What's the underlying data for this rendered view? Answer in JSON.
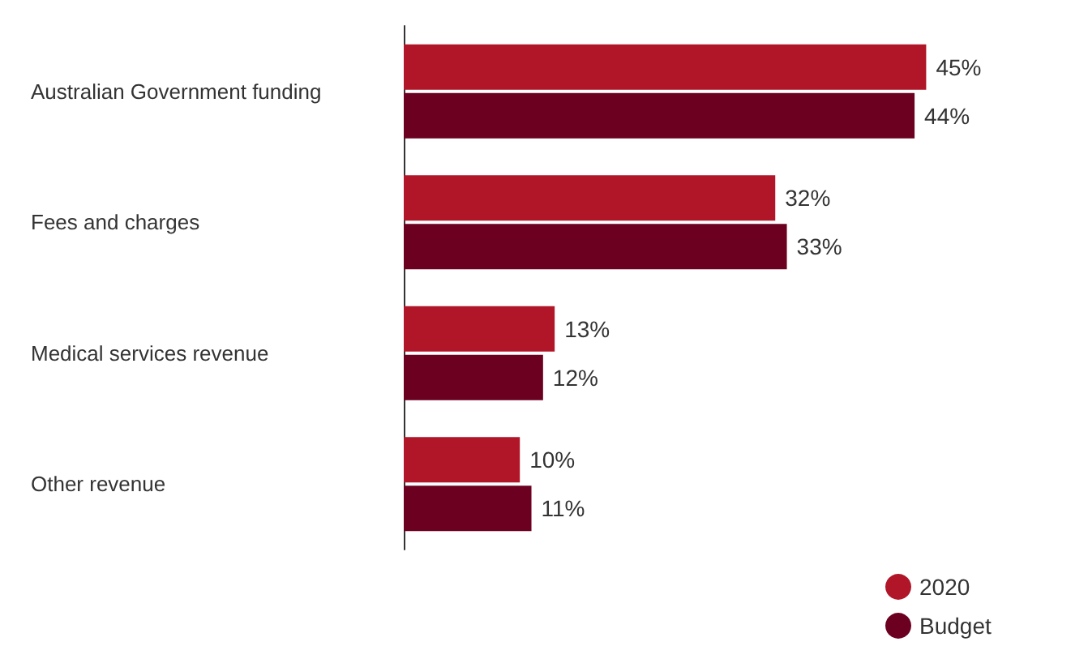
{
  "chart_data": {
    "type": "bar",
    "orientation": "horizontal",
    "tick_labels": "y",
    "categories": [
      "Australian Government funding",
      "Fees and charges",
      "Medical services revenue",
      "Other revenue"
    ],
    "series": [
      {
        "name": "2020",
        "color": "#b01528",
        "values": [
          45,
          32,
          13,
          10
        ],
        "value_labels": [
          "45%",
          "32%",
          "13%",
          "10%"
        ]
      },
      {
        "name": "Budget",
        "color": "#6b0020",
        "values": [
          44,
          33,
          12,
          11
        ],
        "value_labels": [
          "44%",
          "33%",
          "12%",
          "11%"
        ]
      }
    ],
    "legend": "bottom right",
    "marker": "circle",
    "grid": false
  }
}
